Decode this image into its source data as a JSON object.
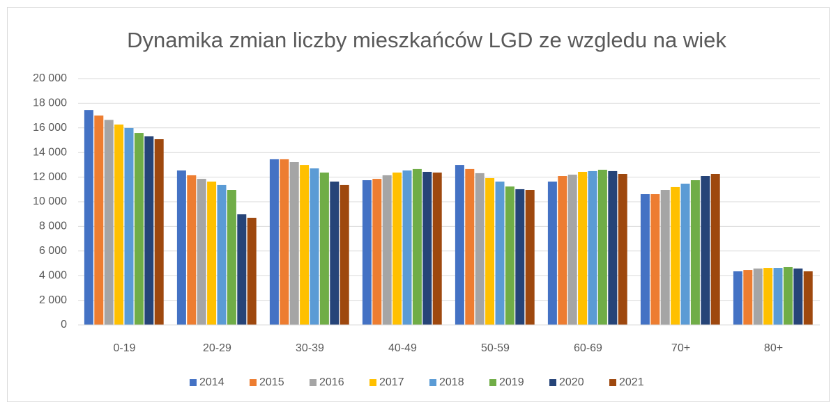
{
  "chart_data": {
    "type": "bar",
    "title": "Dynamika zmian liczby mieszkańców LGD ze wzgledu na wiek",
    "categories": [
      "0-19",
      "20-29",
      "30-39",
      "40-49",
      "50-59",
      "60-69",
      "70+",
      "80+"
    ],
    "series": [
      {
        "name": "2014",
        "color": "#4472c4",
        "values": [
          17450,
          12540,
          13450,
          11750,
          12990,
          11640,
          10620,
          4350
        ]
      },
      {
        "name": "2015",
        "color": "#ed7d31",
        "values": [
          17000,
          12150,
          13450,
          11860,
          12660,
          12090,
          10620,
          4460
        ]
      },
      {
        "name": "2016",
        "color": "#a5a5a5",
        "values": [
          16650,
          11860,
          13220,
          12150,
          12320,
          12200,
          10960,
          4580
        ]
      },
      {
        "name": "2017",
        "color": "#ffc000",
        "values": [
          16270,
          11640,
          12990,
          12370,
          11920,
          12430,
          11190,
          4630
        ]
      },
      {
        "name": "2018",
        "color": "#5b9bd5",
        "values": [
          15990,
          11360,
          12710,
          12540,
          11640,
          12490,
          11470,
          4630
        ]
      },
      {
        "name": "2019",
        "color": "#70ad47",
        "values": [
          15590,
          10960,
          12370,
          12660,
          11240,
          12600,
          11750,
          4690
        ]
      },
      {
        "name": "2020",
        "color": "#264478",
        "values": [
          15310,
          8980,
          11640,
          12430,
          11020,
          12490,
          12090,
          4580
        ]
      },
      {
        "name": "2021",
        "color": "#9e480e",
        "values": [
          15080,
          8700,
          11360,
          12370,
          10960,
          12260,
          12260,
          4350
        ]
      }
    ],
    "ylim": [
      0,
      20000
    ],
    "yticks": [
      0,
      {
        "value": 2000,
        "label": "2 000"
      },
      {
        "value": 4000,
        "label": "4 000"
      },
      {
        "value": 6000,
        "label": "6 000"
      },
      {
        "value": 8000,
        "label": "8 000"
      },
      {
        "value": 10000,
        "label": "10 000"
      },
      {
        "value": 12000,
        "label": "12 000"
      },
      {
        "value": 14000,
        "label": "14 000"
      },
      {
        "value": 16000,
        "label": "16 000"
      },
      {
        "value": 18000,
        "label": "18 000"
      },
      {
        "value": 20000,
        "label": "20 000"
      }
    ],
    "grid": true,
    "legend": "bottom"
  }
}
